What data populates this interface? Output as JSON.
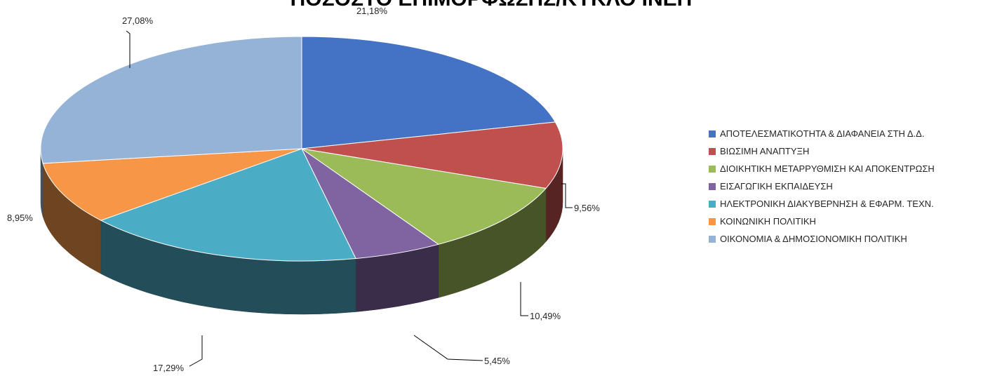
{
  "chart_data": {
    "type": "pie",
    "title": "ΠΟΣΟΣΤΟ ΕΠΙΜΟΡΦΩΣΗΣ/ΚΥΚΛΟ ΙΝΕΠ",
    "legend_position": "right",
    "slices": [
      {
        "label": "ΑΠΟΤΕΛΕΣΜΑΤΙΚΟΤΗΤΑ & ΔΙΑΦΑΝΕΙΑ ΣΤΗ Δ.Δ.",
        "value": 21.18,
        "value_label": "21,18%",
        "color": "#4472c4"
      },
      {
        "label": "ΒΙΩΣΙΜΗ ΑΝΑΠΤΥΞΗ",
        "value": 9.56,
        "value_label": "9,56%",
        "color": "#c0504d"
      },
      {
        "label": "ΔΙΟΙΚΗΤΙΚΗ ΜΕΤΑΡΡΥΘΜΙΣΗ ΚΑΙ ΑΠΟΚΕΝΤΡΩΣΗ",
        "value": 10.49,
        "value_label": "10,49%",
        "color": "#9bbb59"
      },
      {
        "label": "ΕΙΣΑΓΩΓΙΚΗ ΕΚΠΑΙΔΕΥΣΗ",
        "value": 5.45,
        "value_label": "5,45%",
        "color": "#8064a2"
      },
      {
        "label": "ΗΛΕΚΤΡΟΝΙΚΗ ΔΙΑΚΥΒΕΡΝΗΣΗ & ΕΦΑΡΜ. ΤΕΧΝ.",
        "value": 17.29,
        "value_label": "17,29%",
        "color": "#4bacc6"
      },
      {
        "label": "ΚΟΙΝΩΝΙΚΗ ΠΟΛΙΤΙΚΗ",
        "value": 8.95,
        "value_label": "8,95%",
        "color": "#f79646"
      },
      {
        "label": "ΟΙΚΟΝΟΜΙΑ & ΔΗΜΟΣΙΟΝΟΜΙΚΗ ΠΟΛΙΤΙΚΗ",
        "value": 27.08,
        "value_label": "27,08%",
        "color": "#95b3d7"
      }
    ]
  }
}
